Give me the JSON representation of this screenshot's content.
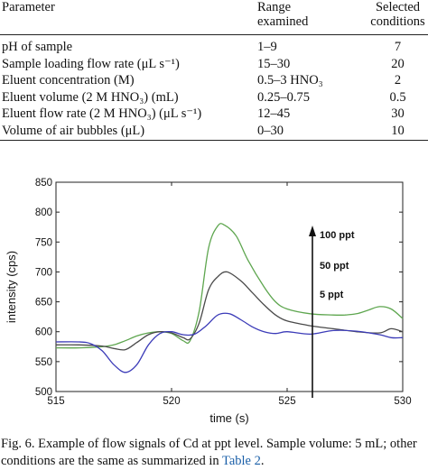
{
  "table": {
    "headers": {
      "parameter": "Parameter",
      "range_line1": "Range",
      "range_line2": "examined",
      "selected_line1": "Selected",
      "selected_line2": "conditions"
    },
    "rows": [
      {
        "parameter": "pH of sample",
        "range": "1–9",
        "selected": "7"
      },
      {
        "parameter": "Sample loading flow rate (μL s⁻¹)",
        "range": "15–30",
        "selected": "20"
      },
      {
        "parameter": "Eluent concentration (M)",
        "range": "0.5–3 HNO₃",
        "selected": "2"
      },
      {
        "parameter": "Eluent volume (2 M HNO₃) (mL)",
        "range": "0.25–0.75",
        "selected": "0.5"
      },
      {
        "parameter": "Eluent flow rate (2 M HNO₃) (μL s⁻¹)",
        "range": "12–45",
        "selected": "30"
      },
      {
        "parameter": "Volume of air bubbles (μL)",
        "range": "0–30",
        "selected": "10"
      }
    ]
  },
  "chart_data": {
    "type": "line",
    "xlabel": "time (s)",
    "ylabel": "intensity (cps)",
    "xlim": [
      515,
      530
    ],
    "ylim": [
      500,
      850
    ],
    "xticks": [
      515,
      520,
      525,
      530
    ],
    "yticks": [
      500,
      550,
      600,
      650,
      700,
      750,
      800,
      850
    ],
    "grid": false,
    "annotations": [
      "100 ppt",
      "50 ppt",
      "5 ppt"
    ],
    "series": [
      {
        "color": "#5ea64f",
        "x": [
          515,
          516,
          517,
          517.5,
          518,
          518.5,
          519,
          519.5,
          520,
          520.5,
          520.8,
          521.2,
          521.6,
          522,
          522.3,
          522.8,
          523.3,
          524,
          524.5,
          525,
          526,
          527,
          527.5,
          528,
          528.5,
          529,
          529.5,
          530
        ],
        "y": [
          573,
          573,
          575,
          578,
          585,
          593,
          598,
          600,
          597,
          585,
          585,
          635,
          740,
          777,
          778,
          760,
          720,
          675,
          650,
          638,
          630,
          628,
          628,
          630,
          636,
          642,
          638,
          622
        ]
      },
      {
        "color": "#4a4a4a",
        "x": [
          515,
          516,
          517,
          517.5,
          518,
          518.5,
          519,
          519.5,
          520,
          520.5,
          520.8,
          521.2,
          521.6,
          522,
          522.4,
          523,
          523.5,
          524,
          524.5,
          525,
          526,
          527,
          528,
          529,
          529.5,
          530
        ],
        "y": [
          578,
          578,
          576,
          572,
          570,
          582,
          595,
          600,
          598,
          590,
          588,
          615,
          670,
          692,
          700,
          685,
          665,
          645,
          628,
          618,
          610,
          605,
          600,
          598,
          605,
          600
        ]
      },
      {
        "color": "#3b3bb8",
        "x": [
          515,
          516,
          516.5,
          517,
          517.5,
          518,
          518.5,
          519,
          519.5,
          520,
          520.5,
          521,
          521.5,
          522,
          522.5,
          523,
          523.5,
          524,
          524.5,
          525,
          526,
          527,
          528,
          529,
          529.5,
          530
        ],
        "y": [
          583,
          583,
          580,
          568,
          545,
          532,
          545,
          578,
          597,
          600,
          595,
          596,
          610,
          628,
          630,
          620,
          608,
          600,
          597,
          600,
          596,
          602,
          601,
          595,
          590,
          590
        ]
      }
    ]
  },
  "caption": {
    "text": "Fig. 6.  Example of flow signals of Cd at ppt level. Sample volume: 5 mL; other conditions are the same as summarized in ",
    "link": "Table 2",
    "end": "."
  }
}
